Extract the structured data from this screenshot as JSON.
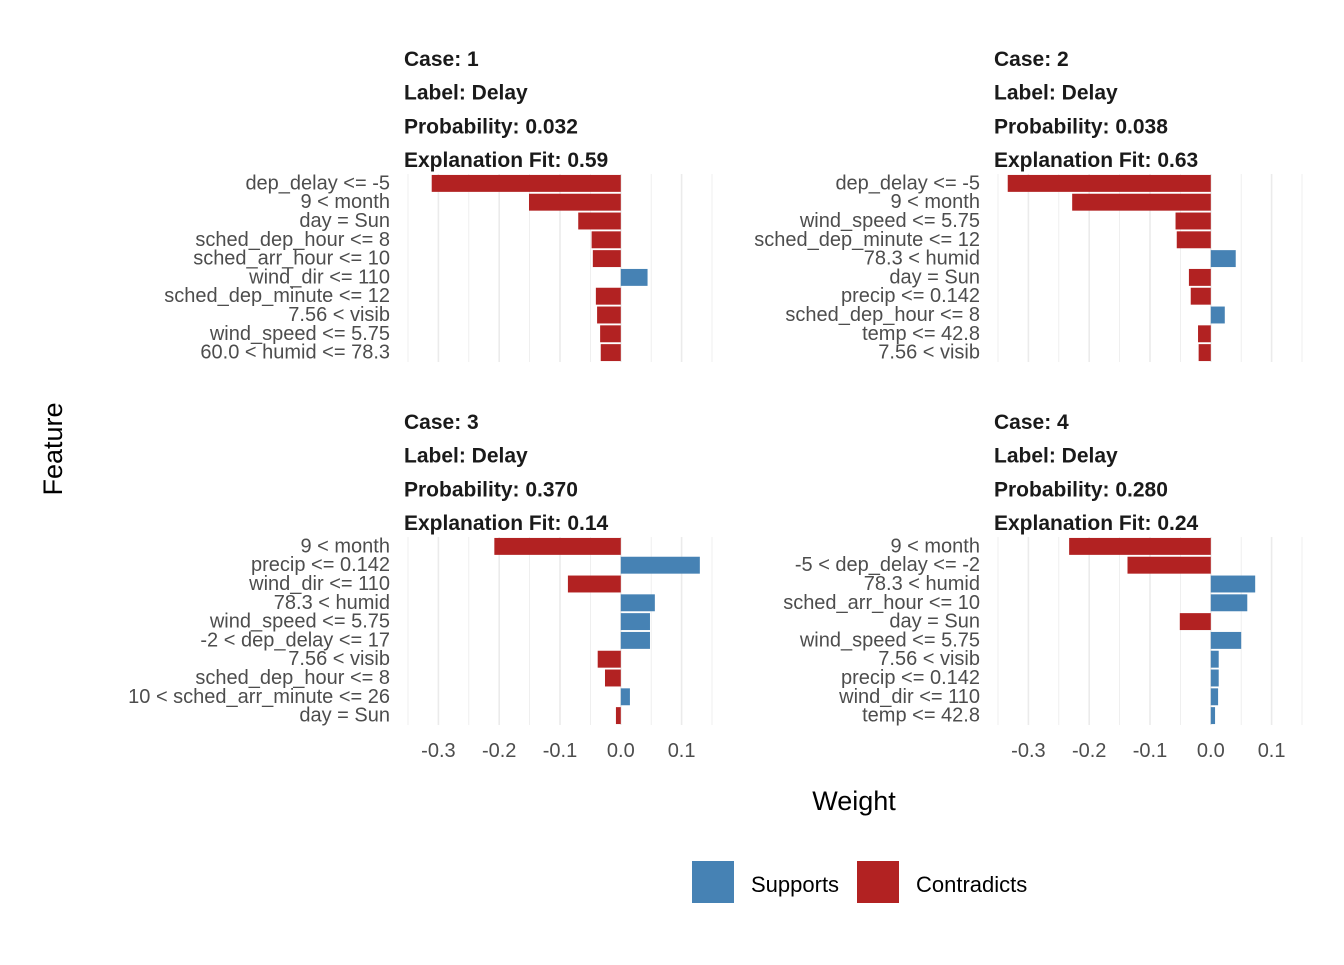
{
  "chart_data": {
    "type": "bar",
    "orientation": "horizontal",
    "xlabel": "Weight",
    "ylabel": "Feature",
    "xlim": [
      -0.35,
      0.15
    ],
    "xticks": [
      "-0.3",
      "-0.2",
      "-0.1",
      "0.0",
      "0.1"
    ],
    "xtick_values": [
      -0.3,
      -0.2,
      -0.1,
      0.0,
      0.1
    ],
    "grid": true,
    "legend": {
      "placement": "bottom",
      "entries": [
        {
          "label": "Supports",
          "color": "#4682B4"
        },
        {
          "label": "Contradicts",
          "color": "#B22222"
        }
      ]
    },
    "facets": [
      {
        "case": "Case: 1",
        "label": "Label: Delay",
        "probability": "Probability: 0.032",
        "fit": "Explanation Fit: 0.59",
        "features": [
          "dep_delay <= -5",
          "9 < month",
          "day = Sun",
          "sched_dep_hour <= 8",
          "sched_arr_hour <= 10",
          "wind_dir <= 110",
          "sched_dep_minute <= 12",
          "7.56 < visib",
          "wind_speed <= 5.75",
          "60.0 < humid <= 78.3"
        ],
        "weights": [
          -0.311,
          -0.151,
          -0.07,
          -0.048,
          -0.046,
          0.044,
          -0.041,
          -0.039,
          -0.034,
          -0.033
        ]
      },
      {
        "case": "Case: 2",
        "label": "Label: Delay",
        "probability": "Probability: 0.038",
        "fit": "Explanation Fit: 0.63",
        "features": [
          "dep_delay <= -5",
          "9 < month",
          "wind_speed <= 5.75",
          "sched_dep_minute <= 12",
          "78.3 < humid",
          "day = Sun",
          "precip <= 0.142",
          "sched_dep_hour <= 8",
          "temp <= 42.8",
          "7.56 < visib"
        ],
        "weights": [
          -0.334,
          -0.228,
          -0.058,
          -0.056,
          0.041,
          -0.036,
          -0.033,
          0.023,
          -0.021,
          -0.02
        ]
      },
      {
        "case": "Case: 3",
        "label": "Label: Delay",
        "probability": "Probability: 0.370",
        "fit": "Explanation Fit: 0.14",
        "features": [
          "9 < month",
          "precip <= 0.142",
          "wind_dir <= 110",
          "78.3 < humid",
          "wind_speed <= 5.75",
          "-2 < dep_delay <= 17",
          "7.56 < visib",
          "sched_dep_hour <= 8",
          "10 < sched_arr_minute <= 26",
          "day = Sun"
        ],
        "weights": [
          -0.208,
          0.13,
          -0.087,
          0.056,
          0.048,
          0.048,
          -0.038,
          -0.026,
          0.015,
          -0.008
        ]
      },
      {
        "case": "Case: 4",
        "label": "Label: Delay",
        "probability": "Probability: 0.280",
        "fit": "Explanation Fit: 0.24",
        "features": [
          "9 < month",
          "-5 < dep_delay <= -2",
          "78.3 < humid",
          "sched_arr_hour <= 10",
          "day = Sun",
          "wind_speed <= 5.75",
          "7.56 < visib",
          "precip <= 0.142",
          "wind_dir <= 110",
          "temp <= 42.8"
        ],
        "weights": [
          -0.233,
          -0.137,
          0.073,
          0.06,
          -0.051,
          0.05,
          0.013,
          0.013,
          0.012,
          0.007
        ]
      }
    ]
  }
}
